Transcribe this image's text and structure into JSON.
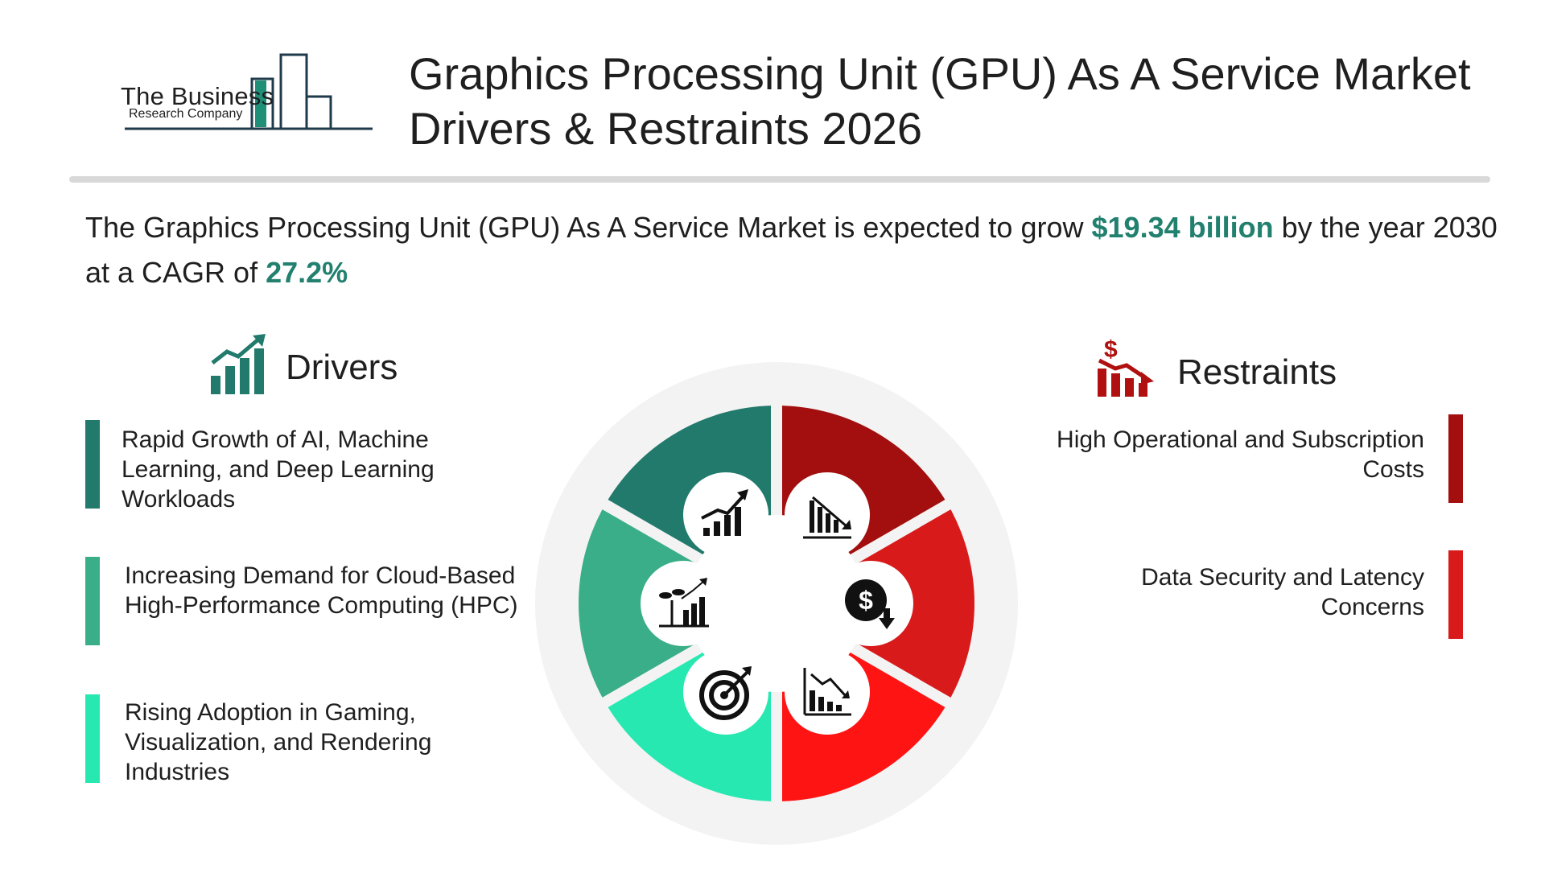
{
  "logo": {
    "line1": "The Business",
    "line2": "Research Company",
    "colors": {
      "accent": "#1f8f77",
      "outline": "#1f3a4a"
    }
  },
  "title": "Graphics Processing Unit (GPU) As A Service Market Drivers & Restraints 2026",
  "summary": {
    "prefix": "The Graphics Processing Unit (GPU) As A Service Market is expected to grow ",
    "amount": "$19.34 billion",
    "middle": " by the year 2030 at a CAGR of ",
    "cagr": "27.2%"
  },
  "drivers": {
    "title": "Drivers",
    "icon": "growth-chart-icon",
    "items": [
      {
        "text": "Rapid Growth of AI, Machine\nLearning, and Deep Learning\nWorkloads",
        "color": "#217a6b"
      },
      {
        "text": "Increasing Demand for Cloud-Based\nHigh-Performance Computing (HPC)",
        "color": "#3aae88"
      },
      {
        "text": "Rising Adoption in Gaming,\nVisualization, and Rendering\nIndustries",
        "color": "#27e8b0"
      }
    ]
  },
  "restraints": {
    "title": "Restraints",
    "icon": "dollar-decline-icon",
    "items": [
      {
        "text": "High Operational and Subscription\nCosts",
        "color": "#a30f0f"
      },
      {
        "text": "Data Security and Latency\nConcerns",
        "color": "#d91a1a"
      }
    ]
  },
  "wheel": {
    "segments": [
      {
        "id": "driver-1",
        "color": "#217a6b"
      },
      {
        "id": "restraint-1",
        "color": "#a30f0f"
      },
      {
        "id": "restraint-2",
        "color": "#d91a1a"
      },
      {
        "id": "restraint-3",
        "color": "#ff1414"
      },
      {
        "id": "driver-3",
        "color": "#27e8b0"
      },
      {
        "id": "driver-2",
        "color": "#3aae88"
      }
    ],
    "icons": [
      "growth-chart-icon",
      "decline-bars-icon",
      "dollar-down-icon",
      "decline-chart-icon",
      "target-icon",
      "plant-growth-icon"
    ]
  }
}
